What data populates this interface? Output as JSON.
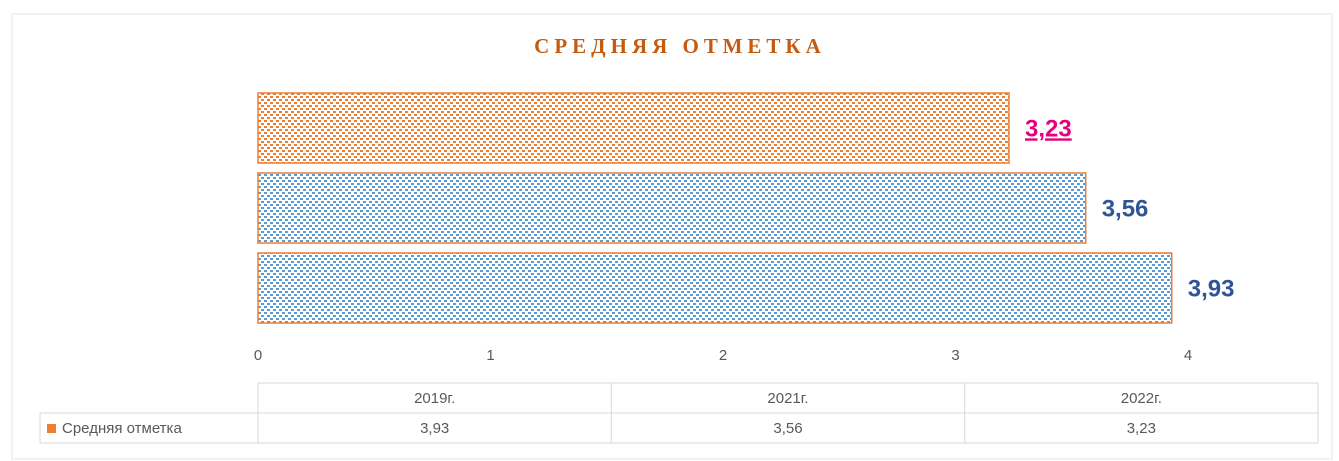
{
  "chart_data": {
    "type": "bar",
    "orientation": "horizontal",
    "title": "СРЕДНЯЯ ОТМЕТКА",
    "categories": [
      "2019г.",
      "2021г.",
      "2022г."
    ],
    "series": [
      {
        "name": "Средняя отметка",
        "color": "#ed7d31",
        "values": [
          3.93,
          3.56,
          3.23
        ],
        "value_labels": [
          "3,93",
          "3,56",
          "3,23"
        ],
        "bar_colors": [
          "#5b9bd5",
          "#5b9bd5",
          "#ed7d31"
        ],
        "label_colors": [
          "#2f5597",
          "#2f5597",
          "#e6007e"
        ]
      }
    ],
    "xlim": [
      0,
      4
    ],
    "xticks": [
      0,
      1,
      2,
      3,
      4
    ],
    "data_table": true
  }
}
